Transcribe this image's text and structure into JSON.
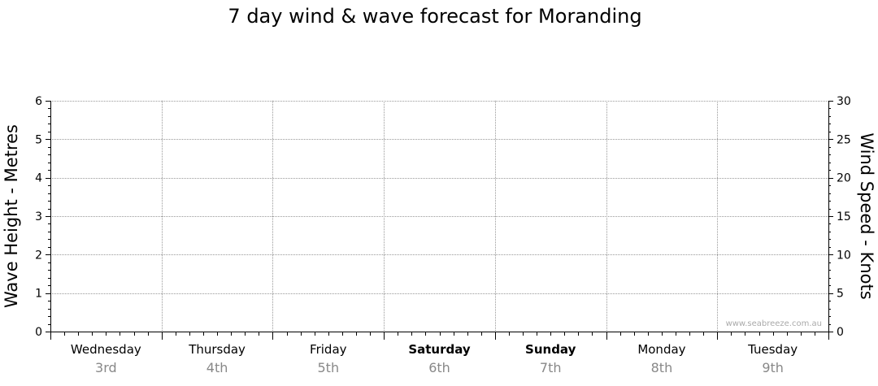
{
  "chart_data": {
    "type": "line",
    "title": "7 day wind & wave forecast for Moranding",
    "ylabel_left": "Wave Height - Metres",
    "ylabel_right": "Wind Speed - Knots",
    "ylim_left": [
      0,
      6
    ],
    "yticks_left": [
      "0",
      "1",
      "2",
      "3",
      "4",
      "5",
      "6"
    ],
    "ylim_right": [
      0,
      30
    ],
    "yticks_right": [
      "0",
      "5",
      "10",
      "15",
      "20",
      "25",
      "30"
    ],
    "grid": true,
    "days": [
      {
        "name": "Wednesday",
        "date": "3rd",
        "weekend": false
      },
      {
        "name": "Thursday",
        "date": "4th",
        "weekend": false
      },
      {
        "name": "Friday",
        "date": "5th",
        "weekend": false
      },
      {
        "name": "Saturday",
        "date": "6th",
        "weekend": true
      },
      {
        "name": "Sunday",
        "date": "7th",
        "weekend": true
      },
      {
        "name": "Monday",
        "date": "8th",
        "weekend": false
      },
      {
        "name": "Tuesday",
        "date": "9th",
        "weekend": false
      }
    ],
    "series": [],
    "watermark": "www.seabreeze.com.au"
  }
}
